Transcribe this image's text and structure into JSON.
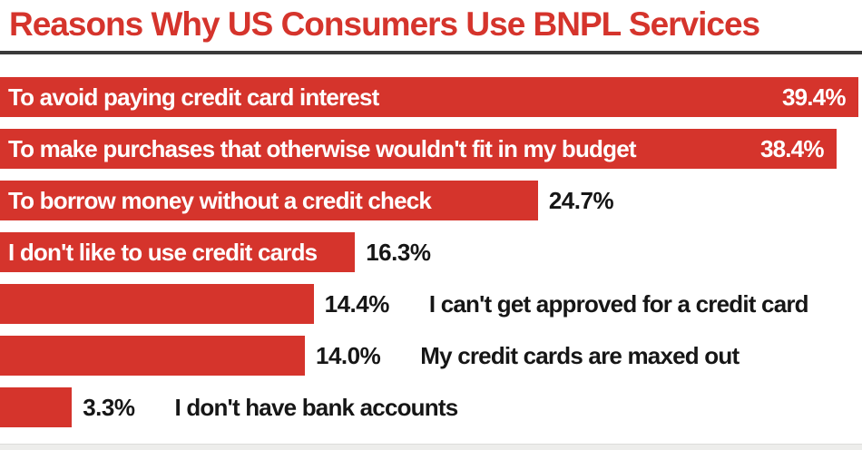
{
  "title": "Reasons Why US Consumers Use BNPL Services",
  "colors": {
    "bar": "#d5342c",
    "title_text": "#d5342c",
    "inside_text": "#ffffff",
    "outside_text": "#161616",
    "divider": "#3a3a3a",
    "footer_strip": "#ededeb",
    "background": "#ffffff"
  },
  "chart_data": {
    "type": "bar",
    "orientation": "horizontal",
    "title": "Reasons Why US Consumers Use BNPL Services",
    "unit": "%",
    "xlim": [
      0,
      39.58
    ],
    "grid": false,
    "legend": false,
    "categories": [
      "To avoid paying credit card interest",
      "To make purchases that otherwise wouldn't fit in my budget",
      "To borrow money without a credit check",
      "I don't like to use credit cards",
      "I can't get approved for a credit card",
      "My credit cards are maxed out",
      "I don't have bank accounts"
    ],
    "values": [
      39.4,
      38.4,
      24.7,
      16.3,
      14.4,
      14.0,
      3.3
    ],
    "rows": [
      {
        "label": "To avoid paying credit card interest",
        "value": 39.4,
        "value_text": "39.4%",
        "label_position": "inside",
        "value_position": "inside"
      },
      {
        "label": "To make purchases that otherwise wouldn't fit in my budget",
        "value": 38.4,
        "value_text": "38.4%",
        "label_position": "inside",
        "value_position": "inside"
      },
      {
        "label": "To borrow money without a credit check",
        "value": 24.7,
        "value_text": "24.7%",
        "label_position": "inside",
        "value_position": "outside"
      },
      {
        "label": "I don't like to use credit cards",
        "value": 16.3,
        "value_text": "16.3%",
        "label_position": "inside",
        "value_position": "outside"
      },
      {
        "label": "I can't get approved for a credit card",
        "value": 14.4,
        "value_text": "14.4%",
        "label_position": "outside",
        "value_position": "outside"
      },
      {
        "label": "My credit cards are maxed out",
        "value": 14.0,
        "value_text": "14.0%",
        "label_position": "outside",
        "value_position": "outside"
      },
      {
        "label": "I don't have bank accounts",
        "value": 3.3,
        "value_text": "3.3%",
        "label_position": "outside",
        "value_position": "outside"
      }
    ]
  }
}
